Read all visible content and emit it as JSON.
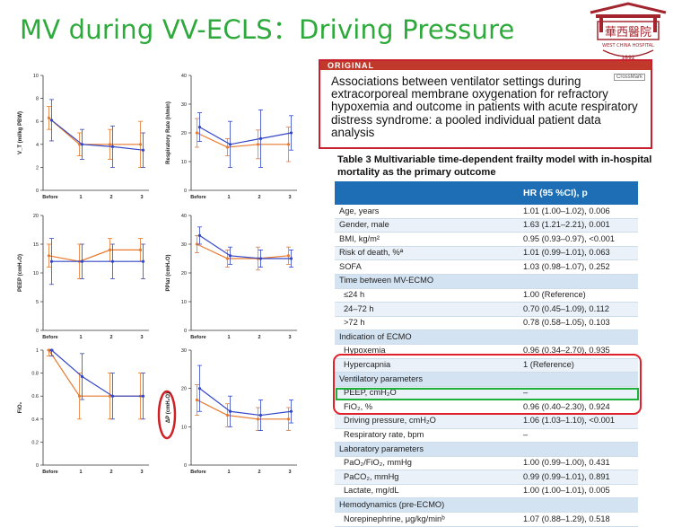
{
  "slide_title": "MV during VV-ECLS：Driving  Pressure",
  "logo": {
    "chinese_text": "華西醫院",
    "english_text": "WEST CHINA HOSPITAL",
    "year": "1892"
  },
  "article": {
    "label": "ORIGINAL",
    "crossmark": "CrossMark",
    "title": "Associations between ventilator settings during extracorporeal membrane oxygenation for refractory hypoxemia and outcome in patients with acute respiratory distress syndrome: a pooled individual patient data analysis"
  },
  "table": {
    "caption": "Table 3  Multivariable  time-dependent  frailty  model with in-hospital mortality as the primary outcome",
    "header": "HR (95 %CI), p",
    "rows": [
      {
        "label": "Age, years",
        "value": "1.01 (1.00–1.02), 0.006",
        "kind": "item"
      },
      {
        "label": "Gender, male",
        "value": "1.63 (1.21–2.21), 0.001",
        "kind": "item"
      },
      {
        "label": "BMI, kg/m²",
        "value": "0.95 (0.93–0.97), <0.001",
        "kind": "item"
      },
      {
        "label": "Risk of death, %ª",
        "value": "1.01 (0.99–1.01), 0.063",
        "kind": "item"
      },
      {
        "label": "SOFA",
        "value": "1.03 (0.98–1.07), 0.252",
        "kind": "item"
      },
      {
        "label": "Time between MV-ECMO",
        "value": "",
        "kind": "sec"
      },
      {
        "label": "≤24 h",
        "value": "1.00 (Reference)",
        "kind": "sub"
      },
      {
        "label": "24–72 h",
        "value": "0.70 (0.45–1.09), 0.112",
        "kind": "sub"
      },
      {
        "label": ">72 h",
        "value": "0.78 (0.58–1.05), 0.103",
        "kind": "sub"
      },
      {
        "label": "Indication of ECMO",
        "value": "",
        "kind": "sec"
      },
      {
        "label": "Hypoxemia",
        "value": "0.96 (0.34–2.70), 0.935",
        "kind": "sub"
      },
      {
        "label": "Hypercapnia",
        "value": "1 (Reference)",
        "kind": "sub"
      },
      {
        "label": "Ventilatory parameters",
        "value": "",
        "kind": "sec"
      },
      {
        "label": "PEEP, cmH₂O",
        "value": "–",
        "kind": "sub"
      },
      {
        "label": "FiO₂, %",
        "value": "0.96 (0.40–2.30), 0.924",
        "kind": "sub"
      },
      {
        "label": "Driving pressure, cmH₂O",
        "value": "1.06 (1.03–1.10), <0.001",
        "kind": "sub"
      },
      {
        "label": "Respiratory rate, bpm",
        "value": "–",
        "kind": "sub"
      },
      {
        "label": "Laboratory parameters",
        "value": "",
        "kind": "sec"
      },
      {
        "label": "PaO₂/FiO₂, mmHg",
        "value": "1.00 (0.99–1.00), 0.431",
        "kind": "sub"
      },
      {
        "label": "PaCO₂, mmHg",
        "value": "0.99 (0.99–1.01), 0.891",
        "kind": "sub"
      },
      {
        "label": "Lactate, mg/dL",
        "value": "1.00 (1.00–1.01), 0.005",
        "kind": "sub"
      },
      {
        "label": "Hemodynamics (pre-ECMO)",
        "value": "",
        "kind": "sec"
      },
      {
        "label": "Norepinephrine, μg/kg/minᵇ",
        "value": "1.07 (0.88–1.29), 0.518",
        "kind": "sub"
      }
    ]
  },
  "chart_data": [
    {
      "type": "line",
      "ylabel": "V_T (ml/kg PBW)",
      "categories": [
        "Before",
        "1",
        "2",
        "3"
      ],
      "ylim": [
        0,
        10
      ],
      "yticks": [
        0,
        2,
        4,
        6,
        8,
        10
      ],
      "series": [
        {
          "color": "#e87a2d",
          "values": [
            6.3,
            4.0,
            4.0,
            4.0
          ],
          "err": [
            1.0,
            1.0,
            1.3,
            2.0
          ]
        },
        {
          "color": "#3346c8",
          "values": [
            6.1,
            4.0,
            3.8,
            3.5
          ],
          "err": [
            1.8,
            1.3,
            1.8,
            1.5
          ]
        }
      ]
    },
    {
      "type": "line",
      "ylabel": "Respiratory Rate (n/min)",
      "categories": [
        "Before",
        "1",
        "2",
        "3"
      ],
      "ylim": [
        0,
        40
      ],
      "yticks": [
        0,
        10,
        20,
        30,
        40
      ],
      "series": [
        {
          "color": "#e87a2d",
          "values": [
            20,
            15,
            16,
            16
          ],
          "err": [
            5,
            3,
            5,
            6
          ]
        },
        {
          "color": "#3346c8",
          "values": [
            22,
            16,
            18,
            20
          ],
          "err": [
            5,
            8,
            10,
            6
          ]
        }
      ]
    },
    {
      "type": "line",
      "ylabel": "PEEP (cmH₂O)",
      "categories": [
        "Before",
        "1",
        "2",
        "3"
      ],
      "ylim": [
        0,
        20
      ],
      "yticks": [
        0,
        5,
        10,
        15,
        20
      ],
      "series": [
        {
          "color": "#e87a2d",
          "values": [
            13,
            12,
            14,
            14
          ],
          "err": [
            2,
            3,
            2,
            2
          ]
        },
        {
          "color": "#3346c8",
          "values": [
            12,
            12,
            12,
            12
          ],
          "err": [
            4,
            3,
            3,
            3
          ]
        }
      ]
    },
    {
      "type": "line",
      "ylabel": "PPlat (cmH₂O)",
      "categories": [
        "Before",
        "1",
        "2",
        "3"
      ],
      "ylim": [
        0,
        40
      ],
      "yticks": [
        0,
        10,
        20,
        30,
        40
      ],
      "series": [
        {
          "color": "#e87a2d",
          "values": [
            30,
            25,
            25,
            26
          ],
          "err": [
            3,
            3,
            4,
            3
          ]
        },
        {
          "color": "#3346c8",
          "values": [
            33,
            26,
            25,
            25
          ],
          "err": [
            3,
            3,
            3,
            3
          ]
        }
      ]
    },
    {
      "type": "line",
      "ylabel": "FiO₂",
      "categories": [
        "Before",
        "1",
        "2",
        "3"
      ],
      "ylim": [
        0,
        1
      ],
      "yticks": [
        0,
        0.2,
        0.4,
        0.6,
        0.8,
        1.0
      ],
      "series": [
        {
          "color": "#e87a2d",
          "values": [
            1.0,
            0.6,
            0.6,
            0.6
          ],
          "err": [
            0.05,
            0.2,
            0.2,
            0.2
          ]
        },
        {
          "color": "#3346c8",
          "values": [
            1.0,
            0.77,
            0.6,
            0.6
          ],
          "err": [
            0.05,
            0.2,
            0.2,
            0.2
          ]
        }
      ]
    },
    {
      "type": "line",
      "ylabel": "ΔP (cmH₂O)",
      "categories": [
        "Before",
        "1",
        "2",
        "3"
      ],
      "ylim": [
        0,
        30
      ],
      "yticks": [
        0,
        10,
        20,
        30
      ],
      "series": [
        {
          "color": "#e87a2d",
          "values": [
            17,
            13,
            12,
            12
          ],
          "err": [
            4,
            3,
            3,
            3
          ]
        },
        {
          "color": "#3346c8",
          "values": [
            20,
            14,
            13,
            14
          ],
          "err": [
            6,
            4,
            4,
            3
          ]
        }
      ]
    }
  ]
}
